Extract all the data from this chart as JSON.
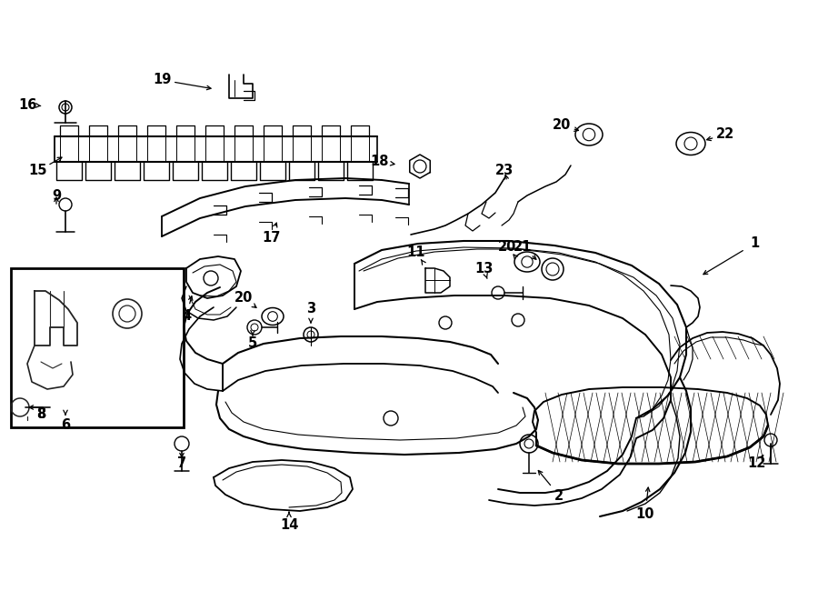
{
  "background_color": "#ffffff",
  "fig_width": 9.0,
  "fig_height": 6.61,
  "dpi": 100,
  "lw_main": 1.3,
  "lw_thin": 0.7,
  "lw_thick": 1.8,
  "font_size": 10.5
}
